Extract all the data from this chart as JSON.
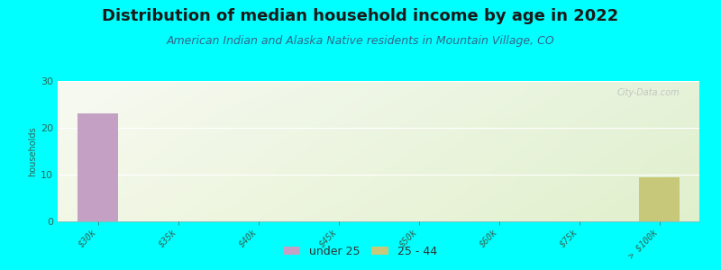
{
  "title": "Distribution of median household income by age in 2022",
  "subtitle": "American Indian and Alaska Native residents in Mountain Village, CO",
  "ylabel": "households",
  "categories": [
    "$30k",
    "$35k",
    "$40k",
    "$45k",
    "$50k",
    "$60k",
    "$75k",
    "> $100k"
  ],
  "series": [
    {
      "name": "under 25",
      "color": "#c4a0c4",
      "values": [
        23,
        0,
        0,
        0,
        0,
        0,
        0,
        0
      ]
    },
    {
      "name": "25 - 44",
      "color": "#c8c87a",
      "values": [
        0,
        0,
        0,
        0,
        0,
        0,
        0,
        9.5
      ]
    }
  ],
  "ylim": [
    0,
    30
  ],
  "yticks": [
    0,
    10,
    20,
    30
  ],
  "bar_width": 0.5,
  "background_color": "#00ffff",
  "grid_color": "#ffffff",
  "title_fontsize": 13,
  "subtitle_fontsize": 9,
  "tick_label_fontsize": 7,
  "ylabel_fontsize": 7,
  "watermark": "City-Data.com",
  "legend_labels": [
    "under 25",
    "25 - 44"
  ],
  "legend_colors": [
    "#c4a0c4",
    "#c8c87a"
  ]
}
